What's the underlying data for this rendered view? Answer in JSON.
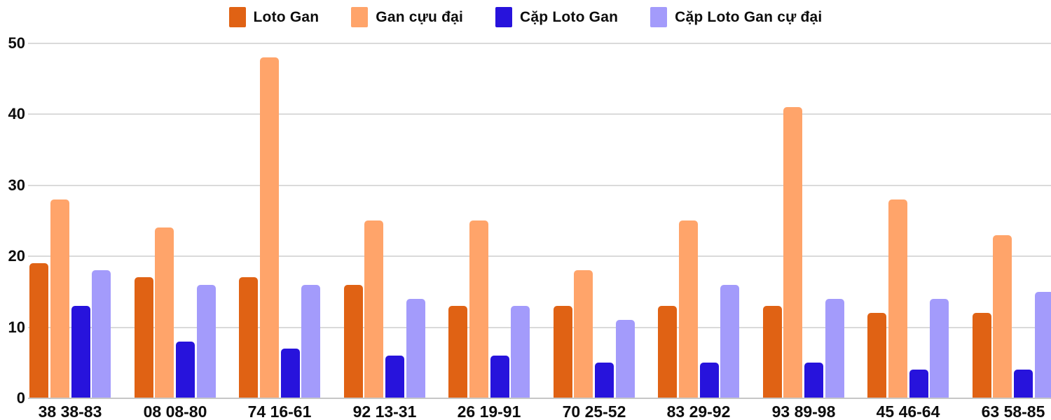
{
  "legend": {
    "items": [
      {
        "label": "Loto Gan",
        "color": "#E06214"
      },
      {
        "label": "Gan cựu đại",
        "color": "#FFA46A"
      },
      {
        "label": "Cặp Loto Gan",
        "color": "#2713DC"
      },
      {
        "label": "Cặp Loto Gan cự đại",
        "color": "#A39BFB"
      }
    ]
  },
  "chart_data": {
    "type": "bar",
    "title": "",
    "xlabel": "",
    "ylabel": "",
    "categories": [
      "38 38-83",
      "08 08-80",
      "74 16-61",
      "92 13-31",
      "26 19-91",
      "70 25-52",
      "83 29-92",
      "93 89-98",
      "45 46-64",
      "63 58-85"
    ],
    "series": [
      {
        "name": "Loto Gan",
        "color": "#E06214",
        "values": [
          19,
          17,
          17,
          16,
          13,
          13,
          13,
          13,
          12,
          12
        ]
      },
      {
        "name": "Gan cựu đại",
        "color": "#FFA46A",
        "values": [
          28,
          24,
          48,
          25,
          25,
          18,
          25,
          41,
          28,
          23
        ]
      },
      {
        "name": "Cặp Loto Gan",
        "color": "#2713DC",
        "values": [
          13,
          8,
          7,
          6,
          6,
          5,
          5,
          5,
          4,
          4
        ]
      },
      {
        "name": "Cặp Loto Gan cự đại",
        "color": "#A39BFB",
        "values": [
          18,
          16,
          16,
          14,
          13,
          11,
          16,
          14,
          14,
          15
        ]
      }
    ],
    "yticks": [
      0,
      10,
      20,
      30,
      40,
      50
    ],
    "ylim": [
      0,
      50
    ],
    "grid": true,
    "legend_position": "top"
  },
  "colors": {
    "gridline": "#dadada",
    "baseline": "#c6c6c6",
    "text": "#0d0d0d",
    "background": "#ffffff"
  }
}
